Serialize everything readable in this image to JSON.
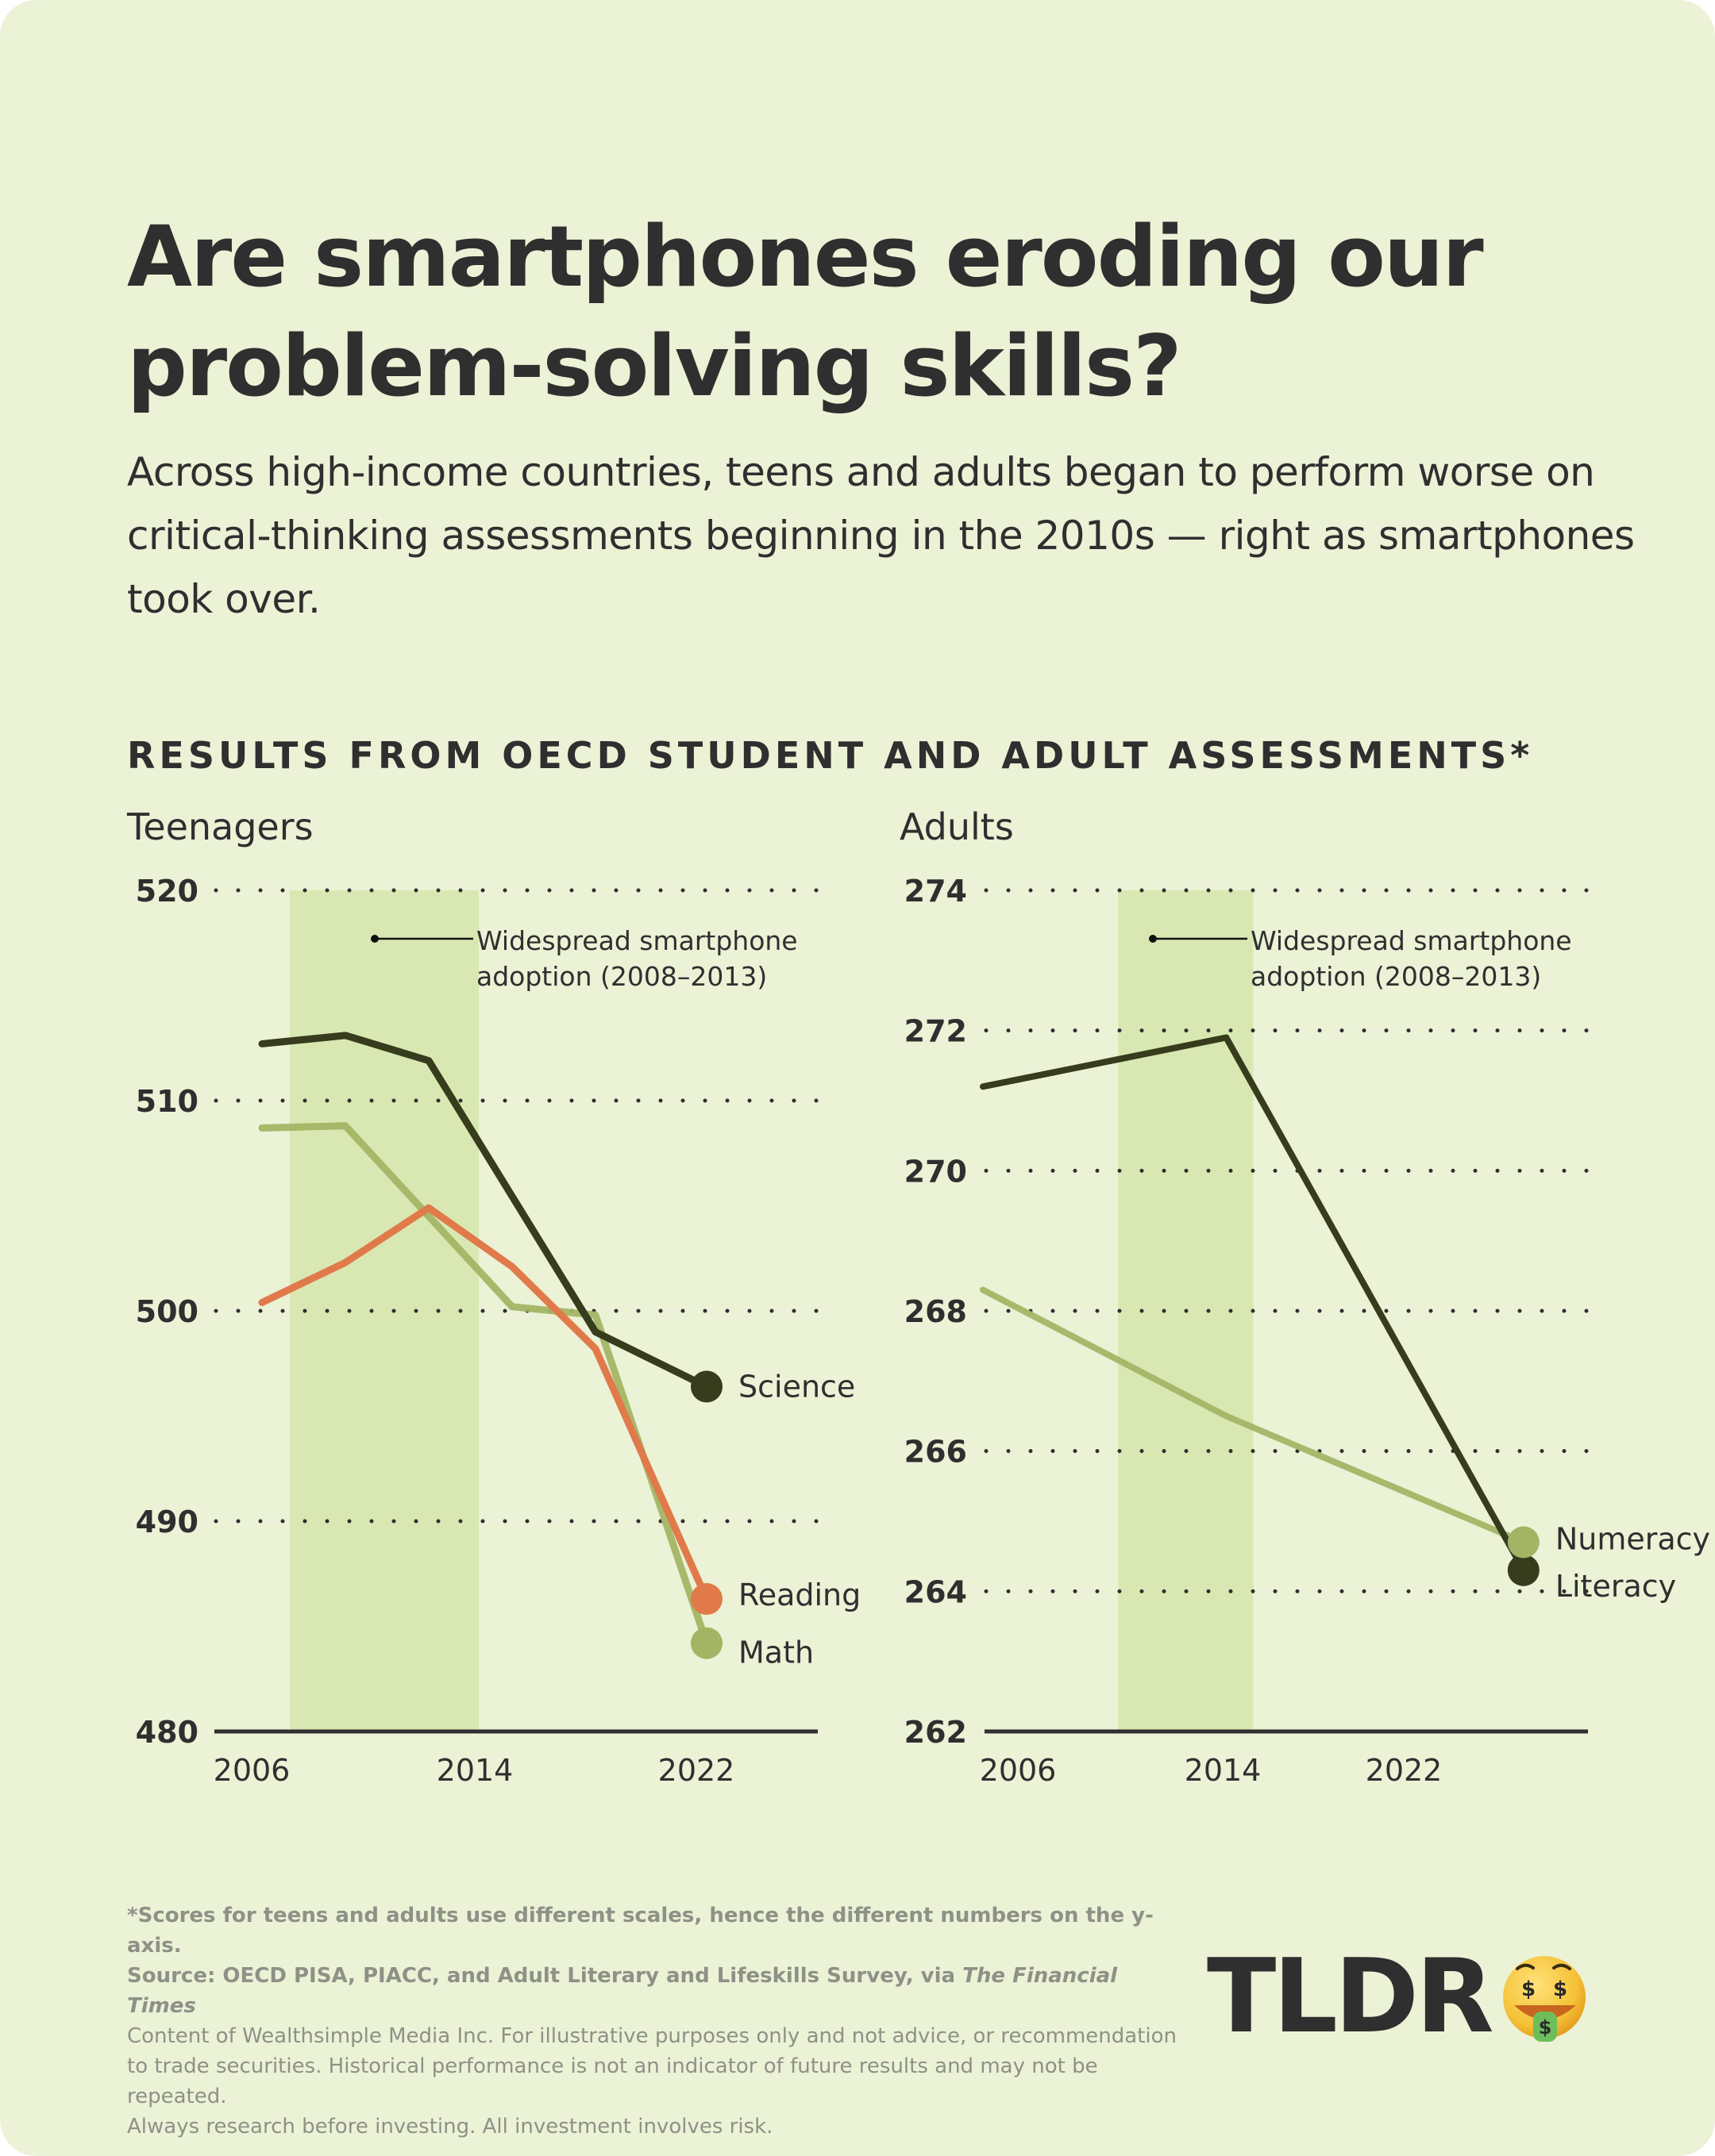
{
  "title": "Are smartphones eroding our problem-solving skills?",
  "title_lines": [
    "Are smartphones eroding our",
    "problem-solving skills?"
  ],
  "subtitle": "Across high-income countries, teens and adults began to perform worse on critical-thinking assessments beginning in the 2010s — right as smartphones took over.",
  "section_heading": "RESULTS FROM OECD STUDENT AND ADULT ASSESSMENTS*",
  "colors": {
    "background": "#EBF2D6",
    "highlight_band": "#D9E8B2",
    "science_literacy": "#363C1C",
    "math_numeracy": "#A3B565",
    "reading": "#E07A4A",
    "text": "#2F2F2F",
    "footer_text": "#8E9186"
  },
  "chart_data": [
    {
      "type": "line",
      "panel": "Teenagers",
      "title": "Teenagers",
      "xlabel": "",
      "ylabel": "",
      "x_ticks": [
        "2006",
        "2014",
        "2022"
      ],
      "y_ticks": [
        "480",
        "490",
        "500",
        "510",
        "520"
      ],
      "xlim": [
        2004,
        2027
      ],
      "ylim": [
        480,
        520
      ],
      "grid": "dotted horizontal",
      "highlight": {
        "from": 2007,
        "to": 2013.8,
        "label": "Widespread smartphone adoption (2008–2013)",
        "label_lines": [
          "Widespread smartphone",
          "adoption (2008–2013)"
        ]
      },
      "x": [
        2006,
        2009,
        2012,
        2015,
        2018,
        2022
      ],
      "series": [
        {
          "name": "Science",
          "color_key": "science_literacy",
          "values": [
            512.7,
            513.1,
            511.9,
            null,
            499.0,
            496.4
          ]
        },
        {
          "name": "Math",
          "color_key": "math_numeracy",
          "values": [
            508.7,
            508.8,
            null,
            500.2,
            499.8,
            484.2
          ]
        },
        {
          "name": "Reading",
          "color_key": "reading",
          "values": [
            500.4,
            502.3,
            504.9,
            502.1,
            498.2,
            486.3
          ]
        }
      ],
      "end_labels": [
        "Science",
        "Reading",
        "Math"
      ]
    },
    {
      "type": "line",
      "panel": "Adults",
      "title": "Adults",
      "xlabel": "",
      "ylabel": "",
      "x_ticks": [
        "2006",
        "2014",
        "2022"
      ],
      "y_ticks": [
        "262",
        "264",
        "266",
        "268",
        "270",
        "272",
        "274"
      ],
      "xlim": [
        2003,
        2027
      ],
      "ylim": [
        262,
        274
      ],
      "grid": "dotted horizontal",
      "highlight": {
        "from": 2008,
        "to": 2013,
        "label": "Widespread smartphone adoption (2008–2013)",
        "label_lines": [
          "Widespread smartphone",
          "adoption (2008–2013)"
        ]
      },
      "x": [
        2003,
        2012,
        2023
      ],
      "series": [
        {
          "name": "Literacy",
          "color_key": "science_literacy",
          "values": [
            271.2,
            271.9,
            264.3
          ]
        },
        {
          "name": "Numeracy",
          "color_key": "math_numeracy",
          "values": [
            268.3,
            266.5,
            264.7
          ]
        }
      ],
      "end_labels": [
        "Numeracy",
        "Literacy"
      ]
    }
  ],
  "footer": {
    "note": "*Scores for teens and adults use different scales, hence the different numbers on the y-axis.",
    "source_prefix": "Source: OECD PISA, PIACC, and Adult Literary and Lifeskills Survey, via ",
    "source_italic": "The Financial Times",
    "disclaimer_lines": [
      "Content of Wealthsimple Media Inc. For illustrative purposes only and not advice, or recommendation",
      "to trade securities. Historical performance is not an indicator of future results and may not be repeated.",
      "Always research before investing. All investment involves risk."
    ]
  },
  "logo": {
    "text": "TLDR",
    "icon": "money-mouth-face-icon"
  }
}
